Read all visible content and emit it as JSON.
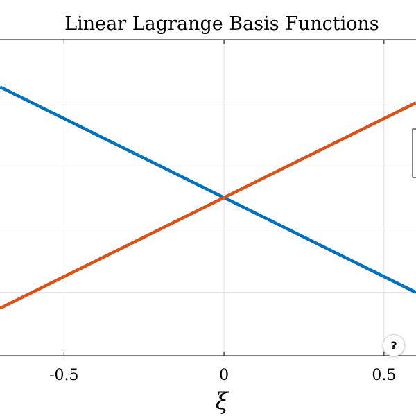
{
  "chart_data": {
    "type": "line",
    "title": "Linear Lagrange Basis Functions",
    "xlabel": "ξ",
    "ylabel": "",
    "xlim": [
      -0.7,
      0.6
    ],
    "ylim": [
      0.0,
      1.0
    ],
    "x_ticks": [
      -0.5,
      0,
      0.5
    ],
    "x_tick_labels": [
      "-0.5",
      "0",
      "0.5"
    ],
    "y_ticks": [
      0.2,
      0.4,
      0.6,
      0.8
    ],
    "grid": true,
    "legend_position": "right",
    "series": [
      {
        "color": "#0072BD",
        "x": [
          -0.7,
          0.6
        ],
        "y": [
          0.85,
          0.2
        ]
      },
      {
        "color": "#D95319",
        "x": [
          -0.7,
          0.6
        ],
        "y": [
          0.15,
          0.8
        ]
      }
    ]
  },
  "help_button": {
    "label": "?",
    "icon": "help-icon"
  }
}
